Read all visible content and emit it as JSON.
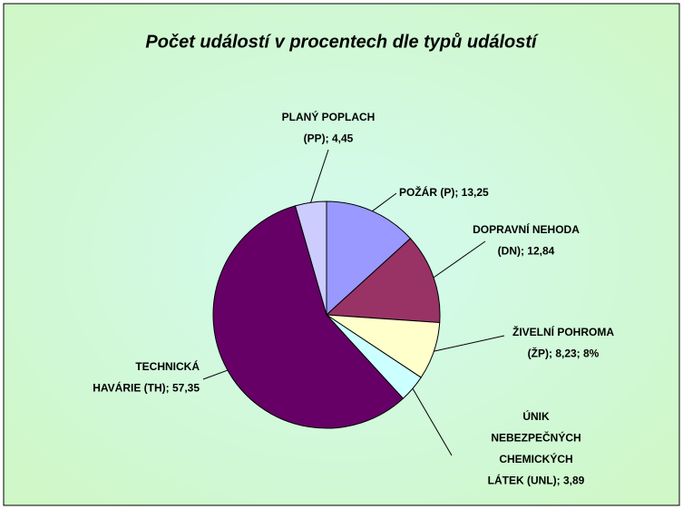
{
  "chart_data": {
    "type": "pie",
    "title": "Počet událostí v procentech  dle typů událostí",
    "values": [
      13.25,
      12.84,
      8.23,
      3.89,
      57.35,
      4.45
    ],
    "value_labels": [
      [
        "POŽÁR (P); 13,25"
      ],
      [
        "DOPRAVNÍ NEHODA",
        "(DN); 12,84"
      ],
      [
        "ŽIVELNÍ POHROMA",
        "(ŽP); 8,23; 8%"
      ],
      [
        "ÚNIK",
        "NEBEZPEČNÝCH",
        "CHEMICKÝCH",
        "LÁTEK (UNL); 3,89"
      ],
      [
        "TECHNICKÁ",
        "HAVÁRIE (TH); 57,35"
      ],
      [
        "PLANÝ POPLACH",
        "(PP); 4,45"
      ]
    ],
    "colors": [
      "#9999ff",
      "#993366",
      "#ffffcc",
      "#ccffff",
      "#660066",
      "#ccccff"
    ]
  }
}
